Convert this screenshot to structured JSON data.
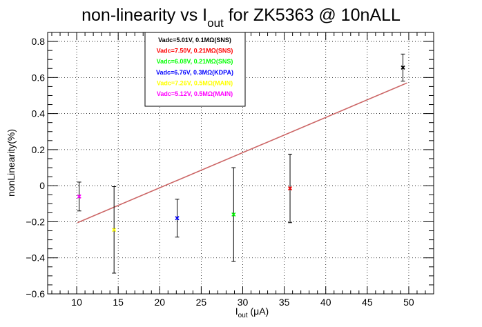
{
  "chart_data": {
    "type": "scatter",
    "title": {
      "main": "non-linearity vs I",
      "sub": "out",
      "rest": " for ZK5363 @ 10nALL"
    },
    "xlabel": {
      "main": "I",
      "sub": "out",
      "rest": " (μA)"
    },
    "ylabel": "nonLinearity(%)",
    "xlim": [
      6.5,
      53
    ],
    "ylim": [
      -0.6,
      0.85
    ],
    "grid": true,
    "legend_position": "top-center",
    "x_ticks": [
      10,
      15,
      20,
      25,
      30,
      35,
      40,
      45,
      50
    ],
    "y_ticks": [
      -0.6,
      -0.4,
      -0.2,
      0,
      0.2,
      0.4,
      0.6,
      0.8
    ],
    "y_tick_labels": [
      "−0.6",
      "−0.4",
      "−0.2",
      "0",
      "0.2",
      "0.4",
      "0.6",
      "0.8"
    ],
    "series": [
      {
        "name": "Vadc=5.01V, 0.1MΩ(SNS)",
        "color": "#000000",
        "x": 49.3,
        "y": 0.655,
        "err": 0.075
      },
      {
        "name": "Vadc=7.50V, 0.21MΩ(SNS)",
        "color": "#ff0000",
        "x": 35.7,
        "y": -0.015,
        "err": 0.19
      },
      {
        "name": "Vadc=6.08V, 0.21MΩ(SNS)",
        "color": "#00ff00",
        "x": 28.9,
        "y": -0.16,
        "err": 0.26
      },
      {
        "name": "Vadc=6.76V, 0.3MΩ(KDPA)",
        "color": "#0000ff",
        "x": 22.1,
        "y": -0.18,
        "err": 0.105
      },
      {
        "name": "Vadc=7.26V, 0.5MΩ(MAIN)",
        "color": "#ffff00",
        "x": 14.5,
        "y": -0.245,
        "err": 0.24
      },
      {
        "name": "Vadc=5.12V, 0.5MΩ(MAIN)",
        "color": "#ff00ff",
        "x": 10.3,
        "y": -0.06,
        "err": 0.08
      }
    ],
    "fit_line": {
      "color": "#cc6666",
      "x": [
        10.1,
        49.8
      ],
      "y": [
        -0.205,
        0.57
      ]
    }
  }
}
